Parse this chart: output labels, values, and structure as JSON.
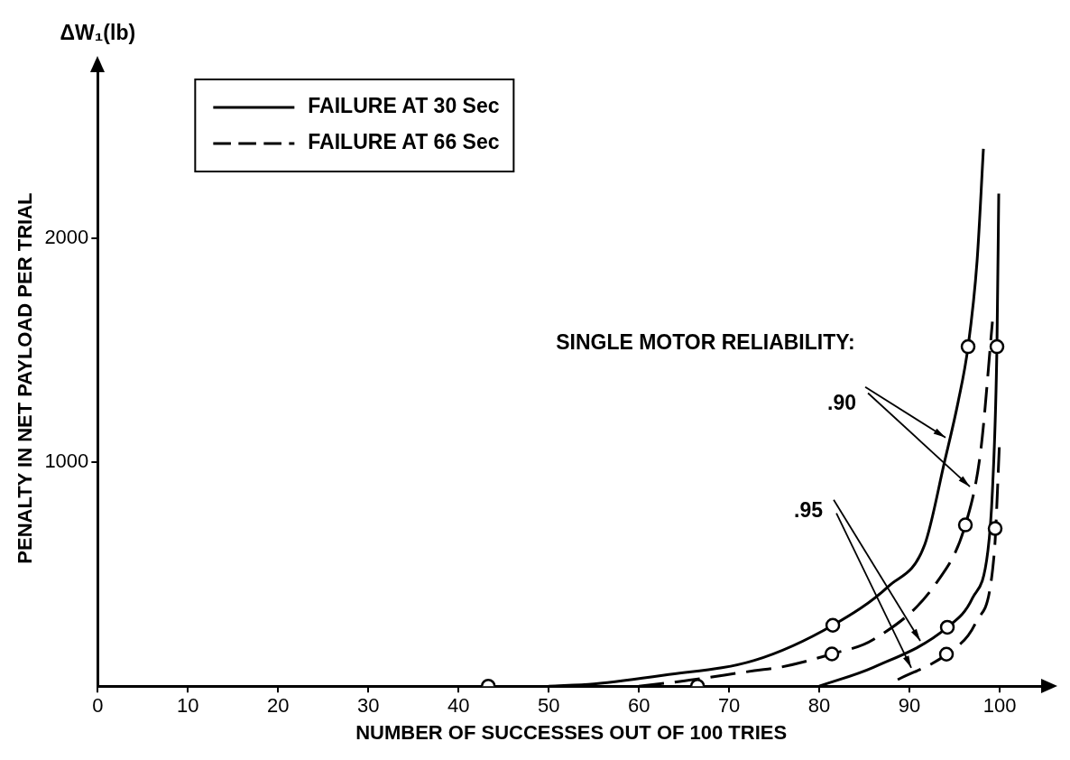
{
  "chart_data": {
    "type": "line",
    "xlabel": "NUMBER OF SUCCESSES OUT OF 100 TRIES",
    "ylabel": "PENALTY IN NET PAYLOAD PER TRIAL",
    "xlim": [
      0,
      105
    ],
    "xticks": [
      0,
      10,
      20,
      30,
      40,
      50,
      60,
      70,
      80,
      90,
      100
    ],
    "ylim": [
      0,
      2750
    ],
    "yticks": [
      1000,
      2000
    ],
    "legend": "top left",
    "annotations": [
      "ΔW₁(lb)",
      "SINGLE MOTOR RELIABILITY:",
      {
        "text": ".90",
        "x": 94.0,
        "y": 1110
      },
      {
        "text": ".95",
        "x": 91.2,
        "y": 202
      }
    ],
    "series": [
      {
        "name": "FAILURE AT 30 Sec",
        "line_style": "solid",
        "color": "#000000",
        "x": [
          50,
          55,
          62.8,
          72.8,
          81.5,
          87.7,
          91.7,
          93.9,
          95.4,
          96.5,
          97.5,
          98.2
        ],
        "values": [
          0,
          10,
          49,
          115,
          272,
          447,
          633,
          1004,
          1270,
          1516,
          1900,
          2400
        ]
      },
      {
        "line_style": "solid",
        "color": "#000000",
        "x": [
          80,
          86,
          94.2,
          97,
          98.7,
          99.2,
          99.7,
          99.9
        ],
        "values": [
          0,
          84,
          263,
          394,
          605,
          872,
          1516,
          2200
        ]
      },
      {
        "name": "FAILURE AT 66 Sec",
        "line_style": "dashed",
        "color": "#000000",
        "x": [
          60,
          65.1,
          72.8,
          75.6,
          81.4,
          86,
          93,
          96.2,
          97.9,
          99.2
        ],
        "values": [
          0,
          24,
          69,
          84,
          144,
          208,
          462,
          720,
          1051,
          1628
        ]
      },
      {
        "line_style": "dashed",
        "color": "#000000",
        "x": [
          88.7,
          94.1,
          97.4,
          99.4,
          100
        ],
        "values": [
          29,
          143,
          288,
          593,
          1100
        ]
      },
      {
        "type": "scatter",
        "marker": "circle",
        "color": "#000000",
        "x": [
          43.3,
          66.5,
          81.5,
          81.4,
          96.5,
          96.2,
          94.2,
          94.1,
          99.7,
          99.5
        ],
        "values": [
          0,
          0,
          272,
          144,
          1516,
          720,
          263,
          143,
          1516,
          704
        ]
      }
    ]
  }
}
